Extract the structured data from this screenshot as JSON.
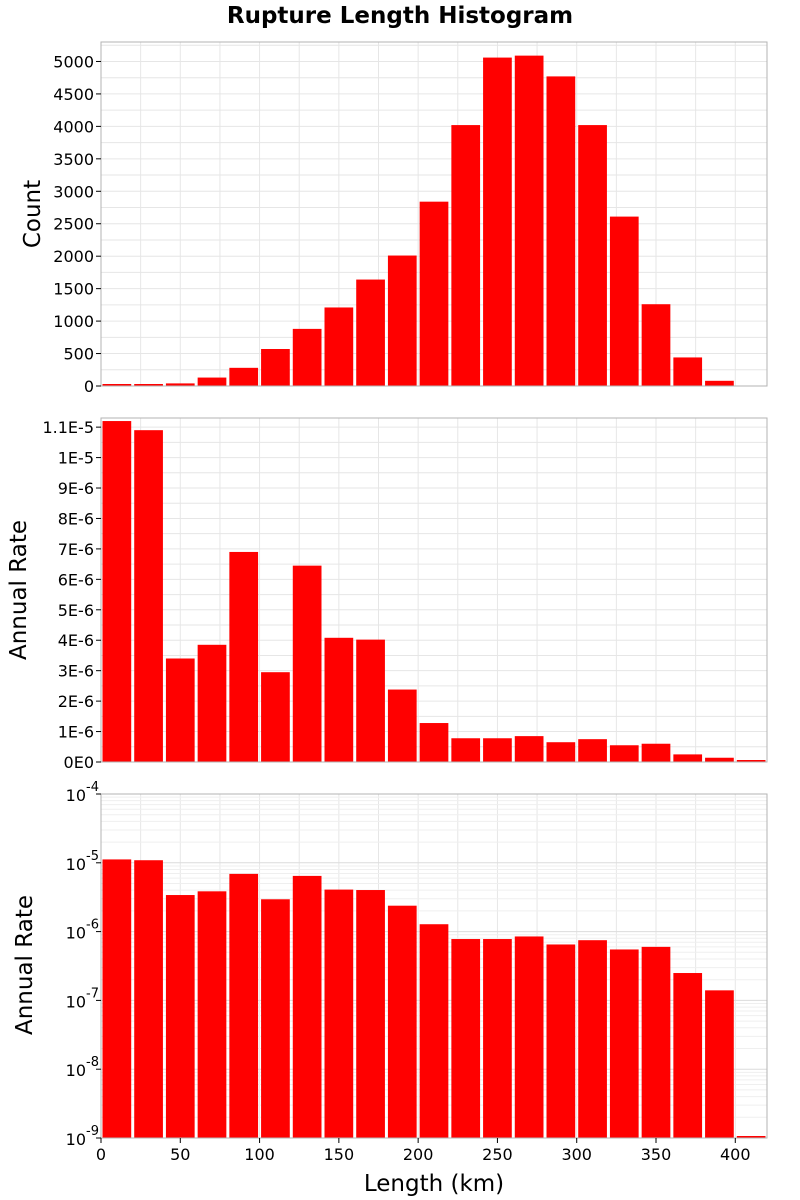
{
  "chart_data": [
    {
      "type": "bar",
      "title": "Rupture Length Histogram",
      "xlabel": "Length (km)",
      "ylabel": "Count",
      "xlim": [
        0,
        420
      ],
      "ylim": [
        0,
        5300
      ],
      "bin_width": 20,
      "x": [
        10,
        30,
        50,
        70,
        90,
        110,
        130,
        150,
        170,
        190,
        210,
        230,
        250,
        270,
        290,
        310,
        330,
        350,
        370,
        390
      ],
      "values": [
        2,
        12,
        40,
        130,
        280,
        570,
        880,
        1210,
        1640,
        2010,
        2840,
        4020,
        5060,
        5090,
        4770,
        4020,
        2610,
        1260,
        440,
        80
      ],
      "y_ticks": [
        0,
        500,
        1000,
        1500,
        2000,
        2500,
        3000,
        3500,
        4000,
        4500,
        5000
      ],
      "y_tick_labels": [
        "0",
        "500",
        "1000",
        "1500",
        "2000",
        "2500",
        "3000",
        "3500",
        "4000",
        "4500",
        "5000"
      ],
      "grid": true,
      "color": "#ff0000"
    },
    {
      "type": "bar",
      "xlabel": "Length (km)",
      "ylabel": "Annual Rate",
      "xlim": [
        0,
        420
      ],
      "ylim": [
        0,
        1.13e-05
      ],
      "bin_width": 20,
      "x": [
        10,
        30,
        50,
        70,
        90,
        110,
        130,
        150,
        170,
        190,
        210,
        230,
        250,
        270,
        290,
        310,
        330,
        350,
        370,
        390,
        410
      ],
      "values": [
        1.12e-05,
        1.09e-05,
        3.4e-06,
        3.85e-06,
        6.9e-06,
        2.95e-06,
        6.45e-06,
        4.08e-06,
        4.02e-06,
        2.38e-06,
        1.28e-06,
        7.8e-07,
        7.8e-07,
        8.5e-07,
        6.5e-07,
        7.5e-07,
        5.5e-07,
        6e-07,
        2.5e-07,
        1.4e-07,
        0
      ],
      "y_ticks": [
        0,
        1e-06,
        2e-06,
        3e-06,
        4e-06,
        5e-06,
        6e-06,
        7e-06,
        8e-06,
        9e-06,
        1e-05,
        1.1e-05
      ],
      "y_tick_labels": [
        "0E0",
        "1E-6",
        "2E-6",
        "3E-6",
        "4E-6",
        "5E-6",
        "6E-6",
        "7E-6",
        "8E-6",
        "9E-6",
        "1E-5",
        "1.1E-5"
      ],
      "grid": true,
      "color": "#ff0000"
    },
    {
      "type": "bar",
      "xlabel": "Length (km)",
      "ylabel": "Annual Rate",
      "xlim": [
        0,
        420
      ],
      "ylim": [
        1e-09,
        0.0001
      ],
      "y_scale": "log",
      "bin_width": 20,
      "x": [
        10,
        30,
        50,
        70,
        90,
        110,
        130,
        150,
        170,
        190,
        210,
        230,
        250,
        270,
        290,
        310,
        330,
        350,
        370,
        390,
        410
      ],
      "values": [
        1.12e-05,
        1.09e-05,
        3.4e-06,
        3.85e-06,
        6.9e-06,
        2.95e-06,
        6.45e-06,
        4.08e-06,
        4.02e-06,
        2.38e-06,
        1.28e-06,
        7.8e-07,
        7.8e-07,
        8.5e-07,
        6.5e-07,
        7.5e-07,
        5.5e-07,
        6e-07,
        2.5e-07,
        1.4e-07,
        1e-09
      ],
      "y_tick_exponents": [
        "-9",
        "-8",
        "-7",
        "-6",
        "-5",
        "-4"
      ],
      "y_tick_base": "10",
      "x_ticks": [
        0,
        50,
        100,
        150,
        200,
        250,
        300,
        350,
        400
      ],
      "x_tick_labels": [
        "0",
        "50",
        "100",
        "150",
        "200",
        "250",
        "300",
        "350",
        "400"
      ],
      "grid": true,
      "color": "#ff0000"
    }
  ]
}
